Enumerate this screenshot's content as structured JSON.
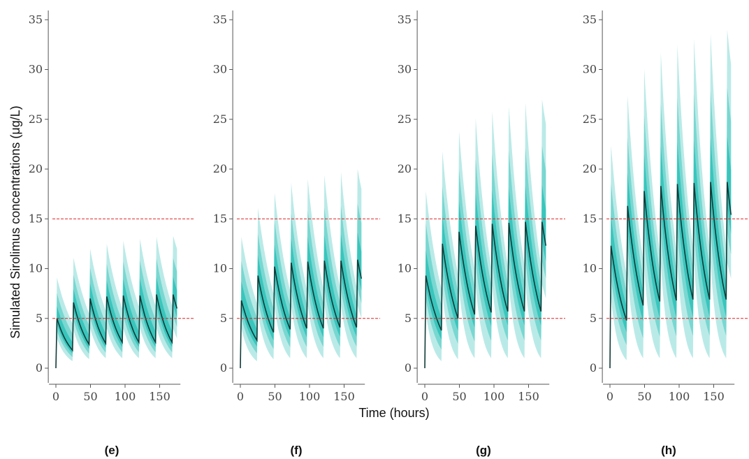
{
  "figure": {
    "ylabel": "Simulated Sirolimus concentrations (μg/L)",
    "xlabel": "Time (hours)"
  },
  "colors": {
    "band_outer": "#aee6e3",
    "band_mid": "#6dd4cd",
    "band_inner": "#2ec2b8",
    "median": "#0f3b38",
    "threshold": "#e02020",
    "axis": "#555555"
  },
  "chart_data": [
    {
      "type": "line",
      "panel_label": "(e)",
      "xlabel": "Time (hours)",
      "ylabel": "Simulated Sirolimus concentrations (μg/L)",
      "xlim": [
        -5,
        180
      ],
      "ylim": [
        -1.5,
        36
      ],
      "xticks": [
        0,
        50,
        100,
        150
      ],
      "yticks": [
        0,
        5,
        10,
        15,
        20,
        25,
        30,
        35
      ],
      "reference_lines": [
        5,
        15
      ],
      "dosing_interval": 24,
      "doses": 8,
      "end_time": 175,
      "median_peaks": [
        5.0,
        6.6,
        7.0,
        7.2,
        7.3,
        7.3,
        7.4,
        7.4
      ],
      "median_troughs": [
        1.8,
        2.4,
        2.5,
        2.6,
        2.6,
        2.6,
        2.6,
        6.0
      ],
      "upper_peaks": [
        9.1,
        11.1,
        12.0,
        12.5,
        12.8,
        13.0,
        13.2,
        13.3
      ],
      "upper_troughs": [
        4.5,
        5.5,
        5.8,
        6.0,
        6.2,
        6.3,
        6.3,
        12.0
      ],
      "lower_peaks": [
        3.0,
        3.8,
        4.0,
        4.0,
        4.0,
        4.0,
        4.0,
        4.0
      ],
      "lower_troughs": [
        0.7,
        0.9,
        1.0,
        1.0,
        1.0,
        1.0,
        1.0,
        3.0
      ],
      "grid": false,
      "legend": "none"
    },
    {
      "type": "line",
      "panel_label": "(f)",
      "xlabel": "Time (hours)",
      "ylabel": "Simulated Sirolimus concentrations (μg/L)",
      "xlim": [
        -5,
        180
      ],
      "ylim": [
        -1.5,
        36
      ],
      "xticks": [
        0,
        50,
        100,
        150
      ],
      "yticks": [
        0,
        5,
        10,
        15,
        20,
        25,
        30,
        35
      ],
      "reference_lines": [
        5,
        15
      ],
      "dosing_interval": 24,
      "doses": 8,
      "end_time": 175,
      "median_peaks": [
        6.8,
        9.3,
        10.2,
        10.6,
        10.7,
        10.8,
        10.8,
        10.9
      ],
      "median_troughs": [
        2.8,
        3.6,
        3.9,
        4.0,
        4.0,
        4.1,
        4.1,
        9.0
      ],
      "upper_peaks": [
        13.2,
        16.1,
        17.6,
        18.6,
        19.0,
        19.4,
        19.7,
        20.0
      ],
      "upper_troughs": [
        6.5,
        7.5,
        7.8,
        8.0,
        8.1,
        8.2,
        8.2,
        18.0
      ],
      "lower_peaks": [
        4.0,
        5.5,
        6.0,
        6.2,
        6.3,
        6.3,
        6.3,
        6.3
      ],
      "lower_troughs": [
        0.7,
        0.9,
        1.0,
        1.0,
        1.0,
        1.0,
        1.0,
        5.0
      ],
      "grid": false,
      "legend": "none"
    },
    {
      "type": "line",
      "panel_label": "(g)",
      "xlabel": "Time (hours)",
      "ylabel": "Simulated Sirolimus concentrations (μg/L)",
      "xlim": [
        -5,
        180
      ],
      "ylim": [
        -1.5,
        36
      ],
      "xticks": [
        0,
        50,
        100,
        150
      ],
      "yticks": [
        0,
        5,
        10,
        15,
        20,
        25,
        30,
        35
      ],
      "reference_lines": [
        5,
        15
      ],
      "dosing_interval": 24,
      "doses": 8,
      "end_time": 175,
      "median_peaks": [
        9.3,
        12.5,
        13.7,
        14.3,
        14.5,
        14.6,
        14.7,
        14.7
      ],
      "median_troughs": [
        3.8,
        5.0,
        5.4,
        5.6,
        5.7,
        5.7,
        5.7,
        12.3
      ],
      "upper_peaks": [
        17.8,
        21.8,
        23.8,
        25.1,
        25.8,
        26.3,
        26.7,
        27.0
      ],
      "upper_troughs": [
        8.0,
        9.5,
        10.0,
        10.2,
        10.3,
        10.4,
        10.4,
        24.5
      ],
      "lower_peaks": [
        5.5,
        7.5,
        8.0,
        8.3,
        8.4,
        8.4,
        8.4,
        8.4
      ],
      "lower_troughs": [
        0.7,
        0.9,
        1.0,
        1.0,
        1.0,
        1.0,
        1.0,
        7.0
      ],
      "grid": false,
      "legend": "none"
    },
    {
      "type": "line",
      "panel_label": "(h)",
      "xlabel": "Time (hours)",
      "ylabel": "Simulated Sirolimus concentrations (μg/L)",
      "xlim": [
        -5,
        180
      ],
      "ylim": [
        -1.5,
        36
      ],
      "xticks": [
        0,
        50,
        100,
        150
      ],
      "yticks": [
        0,
        5,
        10,
        15,
        20,
        25,
        30,
        35
      ],
      "reference_lines": [
        5,
        15
      ],
      "dosing_interval": 24,
      "doses": 8,
      "end_time": 175,
      "median_peaks": [
        12.3,
        16.3,
        17.8,
        18.3,
        18.5,
        18.6,
        18.7,
        18.7
      ],
      "median_troughs": [
        4.8,
        6.3,
        6.7,
        6.8,
        6.9,
        6.9,
        6.9,
        15.4
      ],
      "upper_peaks": [
        22.4,
        27.4,
        30.1,
        31.7,
        32.5,
        33.1,
        33.6,
        34.0
      ],
      "upper_troughs": [
        9.5,
        11.0,
        11.8,
        12.0,
        12.2,
        12.3,
        12.3,
        30.5
      ],
      "lower_peaks": [
        7.0,
        9.5,
        10.2,
        10.5,
        10.6,
        10.6,
        10.6,
        10.6
      ],
      "lower_troughs": [
        0.8,
        1.0,
        1.0,
        1.0,
        1.0,
        1.0,
        1.0,
        9.0
      ],
      "grid": false,
      "legend": "none"
    }
  ]
}
